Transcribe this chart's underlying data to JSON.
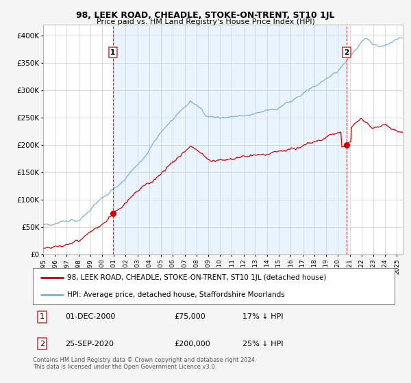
{
  "title": "98, LEEK ROAD, CHEADLE, STOKE-ON-TRENT, ST10 1JL",
  "subtitle": "Price paid vs. HM Land Registry's House Price Index (HPI)",
  "yticks": [
    0,
    50000,
    100000,
    150000,
    200000,
    250000,
    300000,
    350000,
    400000
  ],
  "ytick_labels": [
    "£0",
    "£50K",
    "£100K",
    "£150K",
    "£200K",
    "£250K",
    "£300K",
    "£350K",
    "£400K"
  ],
  "xlim_start": 1995.0,
  "xlim_end": 2025.5,
  "ylim_min": 0,
  "ylim_max": 420000,
  "red_line_color": "#cc0000",
  "blue_line_color": "#7ab0d4",
  "marker1_date": 2000.917,
  "marker1_value": 75000,
  "marker2_date": 2020.729,
  "marker2_value": 200000,
  "legend_line1": "98, LEEK ROAD, CHEADLE, STOKE-ON-TRENT, ST10 1JL (detached house)",
  "legend_line2": "HPI: Average price, detached house, Staffordshire Moorlands",
  "footnote": "Contains HM Land Registry data © Crown copyright and database right 2024.\nThis data is licensed under the Open Government Licence v3.0.",
  "plot_bg_color": "#ffffff",
  "grid_color": "#cccccc",
  "shade_color": "#ddeeff"
}
